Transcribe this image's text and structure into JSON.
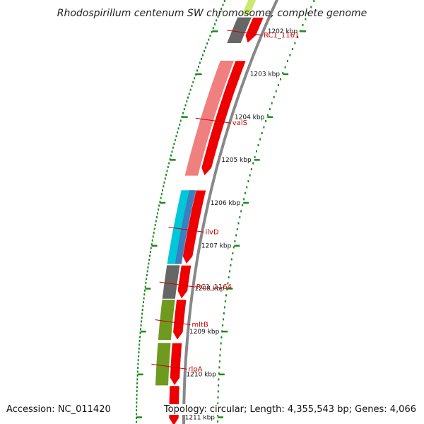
{
  "title": "Rhodospirillum centenum SW chromosome, complete genome",
  "footer": {
    "accession": "Accession: NC_011420",
    "topology": "Topology: circular; Length: 4,355,543 bp; Genes: 4,066"
  },
  "colors": {
    "backbone": "#888888",
    "tick_dot": "#1a8a1a",
    "label": "#cc0000",
    "strand_cds": "#ee0000",
    "gene_gray": "#666666",
    "gene_pink": "#f08080",
    "gene_cyan": "#00c8d8",
    "gene_blue": "#3a7fc0",
    "gene_olive": "#6f9a20",
    "gene_lightgreen": "#cce870"
  },
  "scale": {
    "ticks": [
      {
        "label": "1202 kbp",
        "kbp": 1202
      },
      {
        "label": "1203 kbp",
        "kbp": 1203
      },
      {
        "label": "1204 kbp",
        "kbp": 1204
      },
      {
        "label": "1205 kbp",
        "kbp": 1205
      },
      {
        "label": "1206 kbp",
        "kbp": 1206
      },
      {
        "label": "1207 kbp",
        "kbp": 1207
      },
      {
        "label": "1208 kbp",
        "kbp": 1208
      },
      {
        "label": "1209 kbp",
        "kbp": 1209
      },
      {
        "label": "1210 kbp",
        "kbp": 1210
      },
      {
        "label": "1211 kbp",
        "kbp": 1211
      }
    ]
  },
  "genes": [
    {
      "name": "RC1_1161",
      "start_kbp": 1201.68,
      "end_kbp": 1202.28,
      "color": "gene_gray"
    },
    {
      "name": "valS",
      "start_kbp": 1202.69,
      "end_kbp": 1205.37,
      "color": "gene_pink"
    },
    {
      "name": "ilvD",
      "start_kbp": 1205.71,
      "end_kbp": 1207.43,
      "color": "gene_cyan"
    },
    {
      "name": "RC1_1164",
      "start_kbp": 1207.46,
      "end_kbp": 1208.24,
      "color": "gene_gray"
    },
    {
      "name": "mltB",
      "start_kbp": 1208.26,
      "end_kbp": 1209.2,
      "color": "gene_olive"
    },
    {
      "name": "rlpA",
      "start_kbp": 1209.27,
      "end_kbp": 1210.26,
      "color": "gene_olive"
    }
  ],
  "top_partial_gene": {
    "start_kbp": 1201.2,
    "end_kbp": 1201.62,
    "color": "gene_lightgreen"
  },
  "overlap_segments": [
    {
      "start_kbp": 1205.71,
      "end_kbp": 1207.43,
      "color": "gene_blue"
    }
  ],
  "red_features": [
    {
      "start_kbp": 1201.68,
      "end_kbp": 1202.28
    },
    {
      "start_kbp": 1202.69,
      "end_kbp": 1205.37
    },
    {
      "start_kbp": 1205.71,
      "end_kbp": 1207.43
    },
    {
      "start_kbp": 1207.46,
      "end_kbp": 1208.24
    },
    {
      "start_kbp": 1208.26,
      "end_kbp": 1209.2
    },
    {
      "start_kbp": 1209.27,
      "end_kbp": 1210.26
    },
    {
      "start_kbp": 1210.27,
      "end_kbp": 1211.2
    }
  ]
}
